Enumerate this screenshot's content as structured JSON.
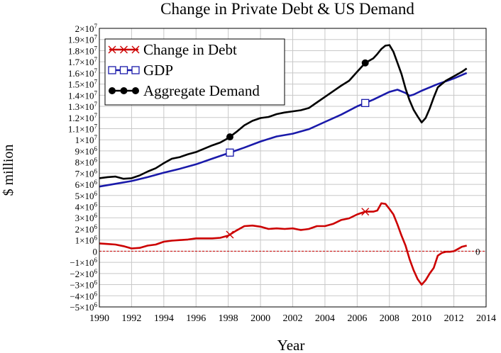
{
  "chart_data": {
    "type": "line",
    "title": "Change in Private Debt & US Demand",
    "xlabel": "Year",
    "ylabel": "$ million",
    "xlim": [
      1990,
      2014
    ],
    "ylim": [
      -5000000,
      20000000
    ],
    "x_ticks": [
      "1990",
      "1992",
      "1994",
      "1996",
      "1998",
      "2000",
      "2002",
      "2004",
      "2006",
      "2008",
      "2010",
      "2012",
      "2014"
    ],
    "y_ticks": [
      {
        "value": 20000000,
        "mant": "2",
        "exp": "7"
      },
      {
        "value": 19000000,
        "mant": "1.9",
        "exp": "7"
      },
      {
        "value": 18000000,
        "mant": "1.8",
        "exp": "7"
      },
      {
        "value": 17000000,
        "mant": "1.7",
        "exp": "7"
      },
      {
        "value": 16000000,
        "mant": "1.6",
        "exp": "7"
      },
      {
        "value": 15000000,
        "mant": "1.5",
        "exp": "7"
      },
      {
        "value": 14000000,
        "mant": "1.4",
        "exp": "7"
      },
      {
        "value": 13000000,
        "mant": "1.3",
        "exp": "7"
      },
      {
        "value": 12000000,
        "mant": "1.2",
        "exp": "7"
      },
      {
        "value": 11000000,
        "mant": "1.1",
        "exp": "7"
      },
      {
        "value": 10000000,
        "mant": "1",
        "exp": "7"
      },
      {
        "value": 9000000,
        "mant": "9",
        "exp": "6"
      },
      {
        "value": 8000000,
        "mant": "8",
        "exp": "6"
      },
      {
        "value": 7000000,
        "mant": "7",
        "exp": "6"
      },
      {
        "value": 6000000,
        "mant": "6",
        "exp": "6"
      },
      {
        "value": 5000000,
        "mant": "5",
        "exp": "6"
      },
      {
        "value": 4000000,
        "mant": "4",
        "exp": "6"
      },
      {
        "value": 3000000,
        "mant": "3",
        "exp": "6"
      },
      {
        "value": 2000000,
        "mant": "2",
        "exp": "6"
      },
      {
        "value": 1000000,
        "mant": "1",
        "exp": "6"
      },
      {
        "value": 0,
        "mant": "0",
        "exp": ""
      },
      {
        "value": -1000000,
        "mant": "−1",
        "exp": "6"
      },
      {
        "value": -2000000,
        "mant": "−2",
        "exp": "6"
      },
      {
        "value": -3000000,
        "mant": "−3",
        "exp": "6"
      },
      {
        "value": -4000000,
        "mant": "−4",
        "exp": "6"
      },
      {
        "value": -5000000,
        "mant": "−5",
        "exp": "6"
      }
    ],
    "mant_suffix": "×10",
    "grid": true,
    "legend_position": "top-left",
    "zero_line_label": "0",
    "series": [
      {
        "name": "Change in Debt",
        "color": "#cc0000",
        "marker": "x",
        "markers_x": [
          1998.1,
          2006.5
        ],
        "x": [
          1990,
          1990.5,
          1991,
          1991.5,
          1992,
          1992.5,
          1993,
          1993.5,
          1994,
          1994.5,
          1995,
          1995.5,
          1996,
          1996.5,
          1997,
          1997.5,
          1998,
          1998.5,
          1999,
          1999.5,
          2000,
          2000.5,
          2001,
          2001.5,
          2002,
          2002.5,
          2003,
          2003.5,
          2004,
          2004.5,
          2005,
          2005.5,
          2006,
          2006.5,
          2007,
          2007.25,
          2007.5,
          2007.75,
          2008,
          2008.25,
          2008.5,
          2008.75,
          2009,
          2009.25,
          2009.5,
          2009.75,
          2010,
          2010.25,
          2010.5,
          2010.75,
          2011,
          2011.25,
          2011.5,
          2011.75,
          2012,
          2012.25,
          2012.5,
          2012.8
        ],
        "y": [
          700000,
          650000,
          600000,
          450000,
          250000,
          300000,
          500000,
          600000,
          850000,
          950000,
          1000000,
          1050000,
          1150000,
          1150000,
          1150000,
          1200000,
          1400000,
          1850000,
          2250000,
          2300000,
          2200000,
          2000000,
          2050000,
          2000000,
          2050000,
          1900000,
          2000000,
          2250000,
          2250000,
          2450000,
          2800000,
          2950000,
          3300000,
          3550000,
          3550000,
          3650000,
          4300000,
          4250000,
          3800000,
          3300000,
          2400000,
          1400000,
          500000,
          -700000,
          -1700000,
          -2500000,
          -3000000,
          -2600000,
          -2000000,
          -1500000,
          -400000,
          -150000,
          -50000,
          -50000,
          0,
          200000,
          400000,
          500000
        ]
      },
      {
        "name": "GDP",
        "color": "#1a1aaa",
        "marker": "square",
        "markers_x": [
          1998.1,
          2006.5
        ],
        "x": [
          1990,
          1991,
          1992,
          1993,
          1994,
          1995,
          1996,
          1997,
          1998,
          1999,
          2000,
          2001,
          2002,
          2003,
          2004,
          2005,
          2006,
          2007,
          2008,
          2008.5,
          2009,
          2009.25,
          2009.5,
          2010,
          2011,
          2012,
          2012.8
        ],
        "y": [
          5800000,
          6050000,
          6300000,
          6650000,
          7050000,
          7400000,
          7800000,
          8300000,
          8800000,
          9300000,
          9850000,
          10300000,
          10550000,
          10950000,
          11600000,
          12250000,
          13000000,
          13600000,
          14300000,
          14500000,
          14200000,
          13950000,
          14050000,
          14400000,
          15000000,
          15500000,
          16000000
        ]
      },
      {
        "name": "Aggregate Demand",
        "color": "#000000",
        "marker": "dot",
        "markers_x": [
          1998.1,
          2006.5
        ],
        "x": [
          1990,
          1990.5,
          1991,
          1991.5,
          1992,
          1992.5,
          1993,
          1993.5,
          1994,
          1994.5,
          1995,
          1995.5,
          1996,
          1996.5,
          1997,
          1997.5,
          1998,
          1998.5,
          1999,
          1999.5,
          2000,
          2000.5,
          2001,
          2001.5,
          2002,
          2002.5,
          2003,
          2003.5,
          2004,
          2004.5,
          2005,
          2005.5,
          2006,
          2006.5,
          2007,
          2007.25,
          2007.5,
          2007.75,
          2008,
          2008.25,
          2008.5,
          2008.75,
          2009,
          2009.25,
          2009.5,
          2009.75,
          2010,
          2010.25,
          2010.5,
          2010.75,
          2011,
          2011.5,
          2012,
          2012.5,
          2012.8
        ],
        "y": [
          6550000,
          6650000,
          6700000,
          6500000,
          6550000,
          6800000,
          7150000,
          7450000,
          7900000,
          8300000,
          8450000,
          8700000,
          8900000,
          9200000,
          9500000,
          9750000,
          10150000,
          10700000,
          11300000,
          11700000,
          11950000,
          12050000,
          12300000,
          12450000,
          12550000,
          12650000,
          12850000,
          13350000,
          13850000,
          14350000,
          14850000,
          15300000,
          16100000,
          16900000,
          17300000,
          17700000,
          18150000,
          18450000,
          18500000,
          17900000,
          16900000,
          15900000,
          14600000,
          13550000,
          12700000,
          12100000,
          11550000,
          11950000,
          12800000,
          13800000,
          14700000,
          15300000,
          15700000,
          16100000,
          16400000
        ]
      }
    ]
  }
}
